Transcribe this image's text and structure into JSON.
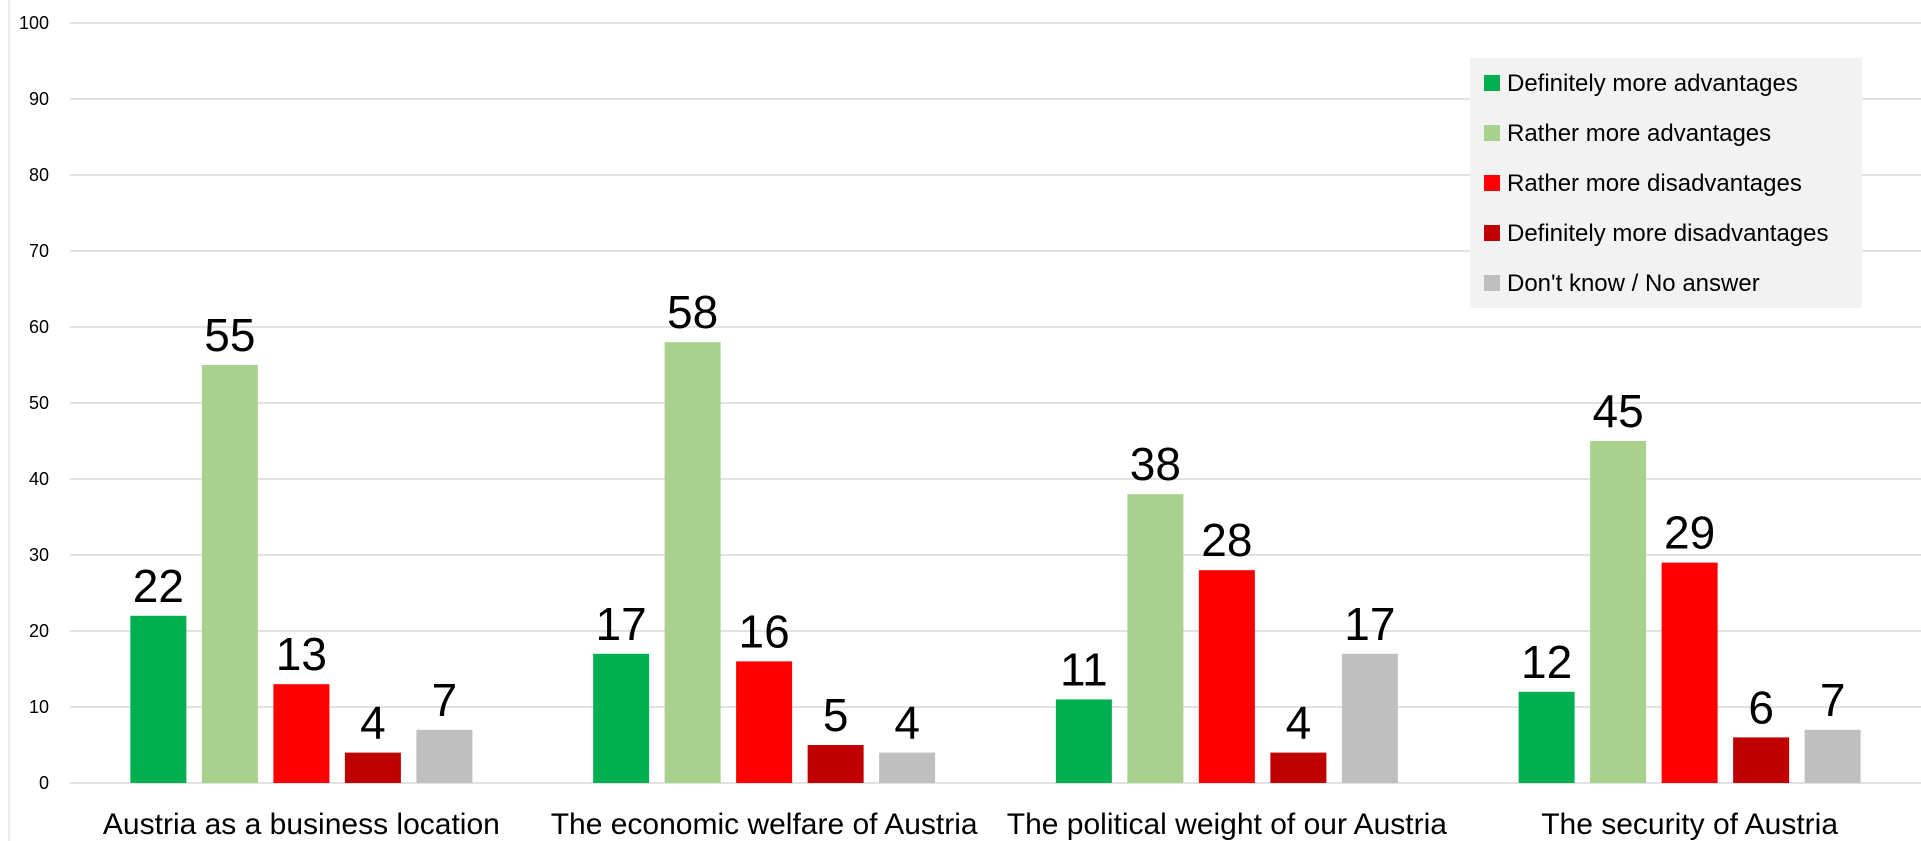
{
  "chart_data": {
    "type": "bar",
    "categories": [
      "Austria as a business location",
      "The economic welfare of Austria",
      "The political weight of our Austria",
      "The security of Austria"
    ],
    "series": [
      {
        "name": "Definitely more advantages",
        "color": "#00b050",
        "values": [
          22,
          17,
          11,
          12
        ]
      },
      {
        "name": "Rather more advantages",
        "color": "#a9d18e",
        "values": [
          55,
          58,
          38,
          45
        ]
      },
      {
        "name": "Rather more disadvantages",
        "color": "#ff0000",
        "values": [
          13,
          16,
          28,
          29
        ]
      },
      {
        "name": "Definitely more disadvantages",
        "color": "#c00000",
        "values": [
          4,
          5,
          4,
          6
        ]
      },
      {
        "name": "Don't know / No answer",
        "color": "#bfbfbf",
        "values": [
          7,
          4,
          17,
          7
        ]
      }
    ],
    "ylim": [
      0,
      100
    ],
    "yticks": [
      "0",
      "10",
      "20",
      "30",
      "40",
      "50",
      "60",
      "70",
      "80",
      "90",
      "100"
    ],
    "grid": true,
    "legend": "top-right"
  }
}
